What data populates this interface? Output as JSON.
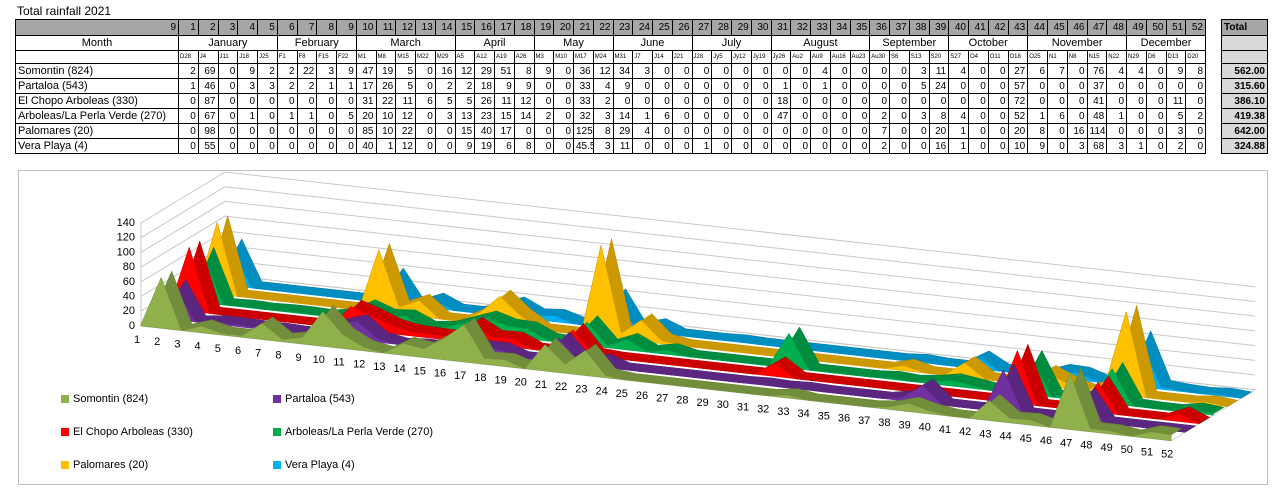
{
  "title": "Total rainfall 2021",
  "table": {
    "corner": "9",
    "weeks": [
      1,
      2,
      3,
      4,
      5,
      6,
      7,
      8,
      9,
      10,
      11,
      12,
      13,
      14,
      15,
      16,
      17,
      18,
      19,
      20,
      21,
      22,
      23,
      24,
      25,
      26,
      27,
      28,
      29,
      30,
      31,
      32,
      33,
      34,
      35,
      36,
      37,
      38,
      39,
      40,
      41,
      42,
      43,
      44,
      45,
      46,
      47,
      48,
      49,
      50,
      51,
      52
    ],
    "total_header": "Total",
    "month_header": "Month",
    "months": [
      {
        "name": "January",
        "dates": [
          "D28",
          "J4",
          "J11",
          "J18",
          "J25"
        ]
      },
      {
        "name": "February",
        "dates": [
          "F1",
          "F8",
          "F15",
          "F22"
        ]
      },
      {
        "name": "March",
        "dates": [
          "M1",
          "M8",
          "M15",
          "M22",
          "M29"
        ]
      },
      {
        "name": "April",
        "dates": [
          "A5",
          "A12",
          "A19",
          "A26"
        ]
      },
      {
        "name": "May",
        "dates": [
          "M3",
          "M10",
          "M17",
          "M24"
        ]
      },
      {
        "name": "June",
        "dates": [
          "M31",
          "J7",
          "J14",
          "J21"
        ]
      },
      {
        "name": "July",
        "dates": [
          "J28",
          "Jy5",
          "Jy12",
          "Jy19"
        ]
      },
      {
        "name": "August",
        "dates": [
          "Jy26",
          "Au2",
          "Au9",
          "Au16",
          "Au23"
        ]
      },
      {
        "name": "September",
        "dates": [
          "Au30",
          "S6",
          "S13",
          "S20"
        ]
      },
      {
        "name": "October",
        "dates": [
          "S27",
          "O4",
          "O11",
          "O18"
        ]
      },
      {
        "name": "November",
        "dates": [
          "O25",
          "N1",
          "N8",
          "N15",
          "N22"
        ]
      },
      {
        "name": "December",
        "dates": [
          "N29",
          "D6",
          "D13",
          "D20"
        ]
      }
    ],
    "rows": [
      {
        "name": "Somontin (824)",
        "values": [
          2,
          69,
          0,
          9,
          2,
          2,
          22,
          3,
          9,
          47,
          19,
          5,
          0,
          16,
          12,
          29,
          51,
          8,
          9,
          0,
          36,
          12,
          34,
          3,
          0,
          0,
          0,
          0,
          0,
          0,
          0,
          0,
          4,
          0,
          0,
          0,
          0,
          3,
          11,
          4,
          0,
          0,
          27,
          6,
          7,
          0,
          76,
          4,
          4,
          0,
          9,
          8
        ],
        "total": "562.00"
      },
      {
        "name": "Partaloa (543)",
        "values": [
          1,
          46,
          0,
          3,
          3,
          2,
          2,
          1,
          1,
          17,
          26,
          5,
          0,
          2,
          2,
          18,
          9,
          9,
          0,
          0,
          33,
          4,
          9,
          0,
          0,
          0,
          0,
          0,
          0,
          0,
          1,
          0,
          1,
          0,
          0,
          0,
          0,
          5,
          24,
          0,
          0,
          0,
          57,
          0,
          0,
          0,
          37,
          0,
          0,
          0,
          0,
          0
        ],
        "total": "315.60"
      },
      {
        "name": "El Chopo Arboleas (330)",
        "values": [
          0,
          87,
          0,
          0,
          0,
          0,
          0,
          0,
          0,
          31,
          22,
          11,
          6,
          5,
          5,
          26,
          11,
          12,
          0,
          0,
          33,
          2,
          0,
          0,
          0,
          0,
          0,
          0,
          0,
          0,
          18,
          0,
          0,
          0,
          0,
          0,
          0,
          0,
          0,
          0,
          0,
          0,
          72,
          0,
          0,
          0,
          41,
          0,
          0,
          0,
          11,
          0
        ],
        "total": "386.10"
      },
      {
        "name": "Arboleas/La Perla Verde (270)",
        "values": [
          0,
          67,
          0,
          1,
          0,
          1,
          1,
          0,
          5,
          20,
          10,
          12,
          0,
          3,
          13,
          23,
          15,
          14,
          2,
          0,
          32,
          3,
          14,
          1,
          6,
          0,
          0,
          0,
          0,
          0,
          47,
          0,
          0,
          0,
          0,
          2,
          0,
          3,
          8,
          4,
          0,
          0,
          52,
          1,
          6,
          0,
          48,
          1,
          0,
          0,
          5,
          2
        ],
        "total": "419.38"
      },
      {
        "name": "Palomares (20)",
        "values": [
          0,
          98,
          0,
          0,
          0,
          0,
          0,
          0,
          0,
          85,
          10,
          22,
          0,
          0,
          15,
          40,
          17,
          0,
          0,
          0,
          125,
          8,
          29,
          4,
          0,
          0,
          0,
          0,
          0,
          0,
          0,
          0,
          0,
          0,
          0,
          7,
          0,
          0,
          20,
          1,
          0,
          0,
          20,
          8,
          0,
          16,
          114,
          0,
          0,
          0,
          3,
          0
        ],
        "total": "642.00"
      },
      {
        "name": "Vera Playa (4)",
        "values": [
          0,
          55,
          0,
          0,
          0,
          0,
          0,
          0,
          0,
          40,
          1,
          12,
          0,
          0,
          9,
          19,
          6,
          8,
          0,
          0,
          45.5,
          3,
          11,
          0,
          0,
          0,
          1,
          0,
          0,
          0,
          0,
          0,
          0,
          0,
          0,
          2,
          0,
          0,
          16,
          1,
          0,
          0,
          10,
          9,
          0,
          3,
          68,
          3,
          1,
          0,
          2,
          0
        ],
        "total": "324.88"
      }
    ]
  },
  "chart_data": {
    "type": "area3d",
    "ylim": [
      0,
      140
    ],
    "yticks": [
      0,
      20,
      40,
      60,
      80,
      100,
      120,
      140
    ],
    "grid": true,
    "colors": [
      "#8fb04a",
      "#7030a0",
      "#ff0000",
      "#00b050",
      "#ffc000",
      "#00b0f0"
    ]
  }
}
